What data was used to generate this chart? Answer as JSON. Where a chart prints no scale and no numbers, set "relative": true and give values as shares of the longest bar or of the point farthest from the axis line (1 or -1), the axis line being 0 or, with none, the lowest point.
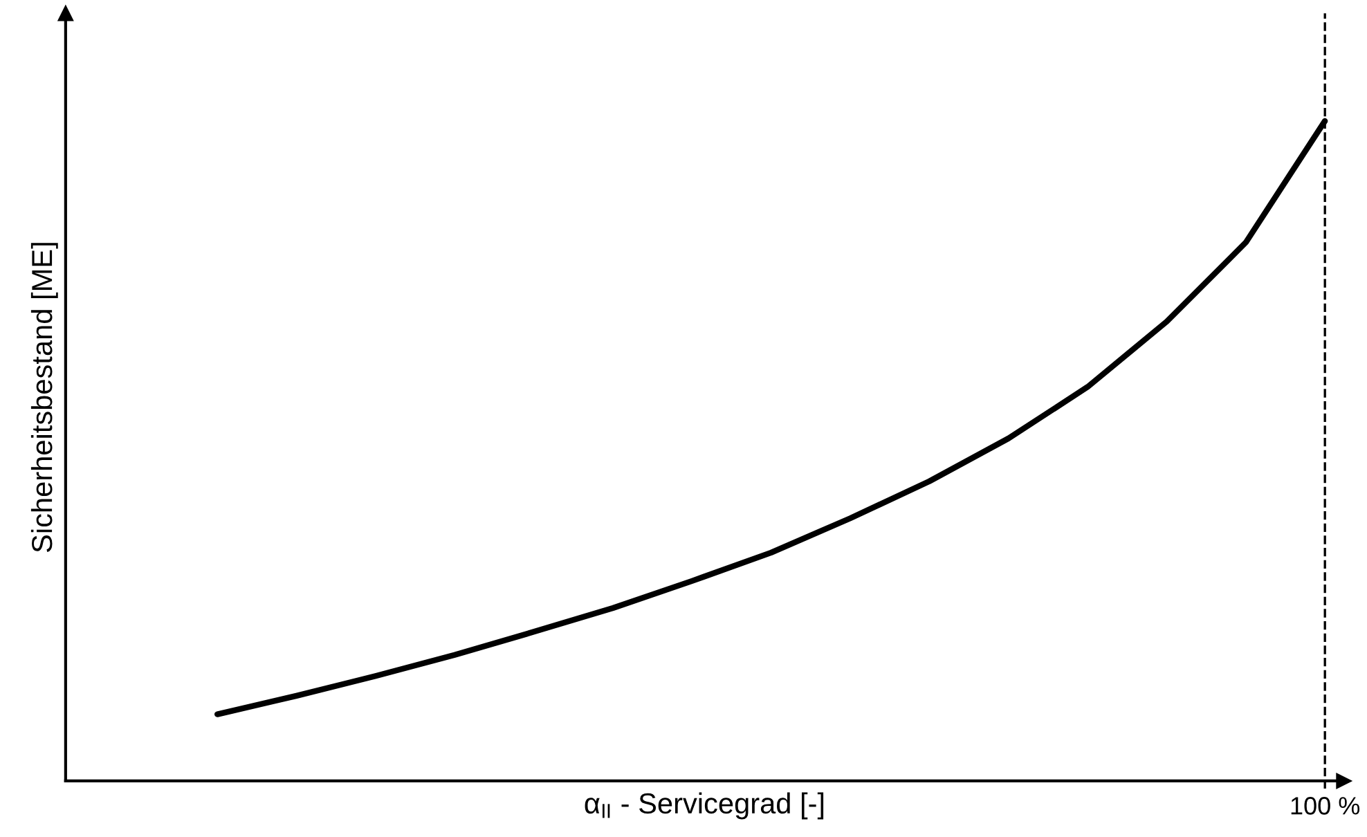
{
  "chart_data": {
    "type": "line",
    "relative": true,
    "xlabel": "α$_{II}$ - Servicegrad [-]",
    "ylabel": "Sicherheitsbestand [ME]",
    "categories": [
      null,
      null,
      null,
      null,
      null,
      null,
      null,
      null,
      null,
      null,
      null,
      null,
      null,
      null,
      null
    ],
    "series": [
      {
        "color": "#000000",
        "values": [
          0.101,
          0.129,
          0.159,
          0.191,
          0.226,
          0.262,
          0.303,
          0.346,
          0.398,
          0.454,
          0.519,
          0.597,
          0.696,
          0.816,
          1.0
        ]
      }
    ],
    "ref_lines": [
      {
        "axis": "x",
        "label": "100 %",
        "color": "#000000",
        "line_style": "dashed"
      }
    ],
    "marker": "none",
    "line_style": "solid"
  }
}
